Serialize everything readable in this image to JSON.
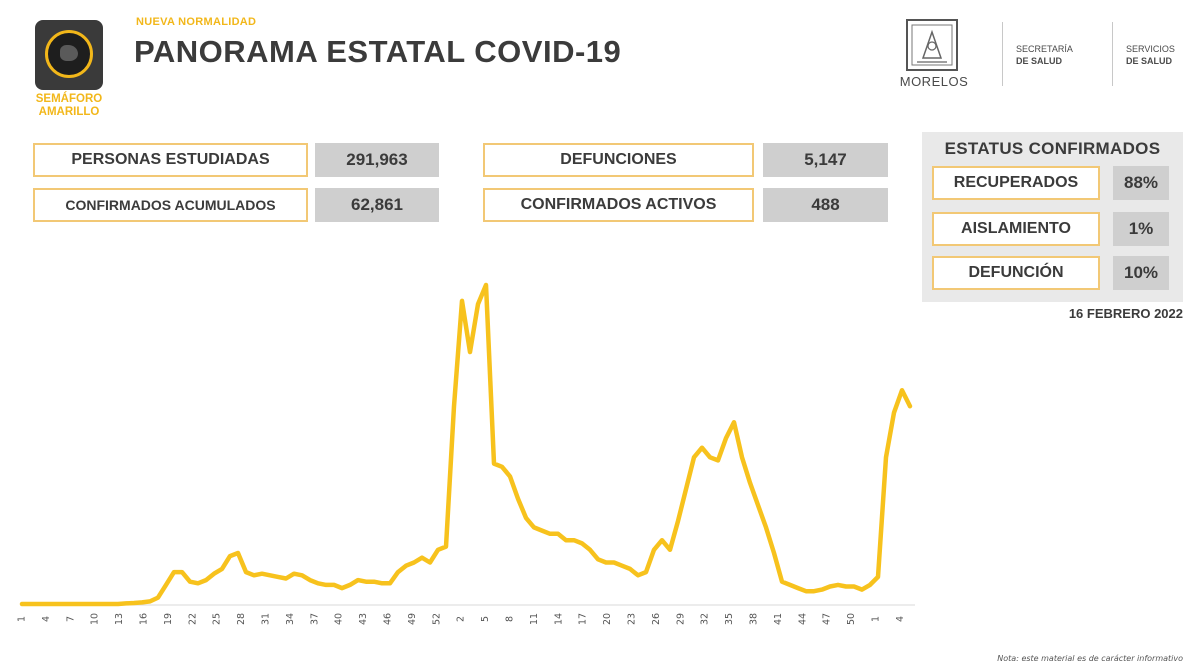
{
  "header": {
    "semaforo_line1": "SEMÁFORO",
    "semaforo_line2": "AMARILLO",
    "subtitle": "NUEVA NORMALIDAD",
    "title": "PANORAMA ESTATAL COVID-19",
    "state_name": "MORELOS",
    "org1_line1": "SECRETARÍA",
    "org1_line2": "DE SALUD",
    "org2_line1": "SERVICIOS",
    "org2_line2": "DE SALUD"
  },
  "stats": {
    "estudiadas_label": "PERSONAS ESTUDIADAS",
    "estudiadas_value": "291,963",
    "acumulados_label": "CONFIRMADOS ACUMULADOS",
    "acumulados_value": "62,861",
    "defunciones_label": "DEFUNCIONES",
    "defunciones_value": "5,147",
    "activos_label": "CONFIRMADOS ACTIVOS",
    "activos_value": "488"
  },
  "status": {
    "title": "ESTATUS CONFIRMADOS",
    "recuperados_label": "RECUPERADOS",
    "recuperados_value": "88%",
    "aislamiento_label": "AISLAMIENTO",
    "aislamiento_value": "1%",
    "defuncion_label": "DEFUNCIÓN",
    "defuncion_value": "10%"
  },
  "date": "16 FEBRERO 2022",
  "note": "Nota: este material es de carácter informativo",
  "colors": {
    "accent": "#f2b71a",
    "line": "#f7c21d",
    "value_bg": "#cfcfcf",
    "panel_bg": "#e9e9e9"
  },
  "chart_data": {
    "type": "line",
    "tick_labels": [
      "1",
      "4",
      "7",
      "10",
      "13",
      "16",
      "19",
      "22",
      "25",
      "28",
      "31",
      "34",
      "37",
      "40",
      "43",
      "46",
      "49",
      "52",
      "2",
      "5",
      "8",
      "11",
      "14",
      "17",
      "20",
      "23",
      "26",
      "29",
      "32",
      "35",
      "38",
      "41",
      "44",
      "47",
      "50",
      "1",
      "4"
    ],
    "ylim": [
      0,
      100
    ],
    "grid": false,
    "values": [
      0,
      0,
      0,
      0,
      0,
      0,
      0,
      0,
      0,
      0,
      0,
      0,
      0,
      0.2,
      0.3,
      0.5,
      0.8,
      2,
      6,
      10,
      10,
      7,
      6.5,
      7.5,
      9.5,
      11,
      15,
      16,
      10,
      9,
      9.5,
      9,
      8.5,
      8,
      9.5,
      9,
      7.5,
      6.5,
      6,
      6,
      5,
      6,
      7.5,
      7,
      7,
      6.5,
      6.5,
      10,
      12,
      13,
      14.5,
      13,
      17,
      18,
      62,
      95,
      79,
      94,
      100,
      44,
      43,
      40,
      33,
      27,
      24,
      23,
      22,
      22,
      20,
      20,
      19,
      17,
      14,
      13,
      13,
      12,
      11,
      9,
      10,
      17,
      20,
      17,
      26,
      36,
      46,
      49,
      46,
      45,
      52,
      57,
      46,
      38,
      31,
      24,
      16,
      7,
      6,
      5,
      4,
      4,
      4.5,
      5.5,
      6,
      5.5,
      5.5,
      4.5,
      6,
      8.5,
      46,
      60,
      67,
      62
    ]
  }
}
